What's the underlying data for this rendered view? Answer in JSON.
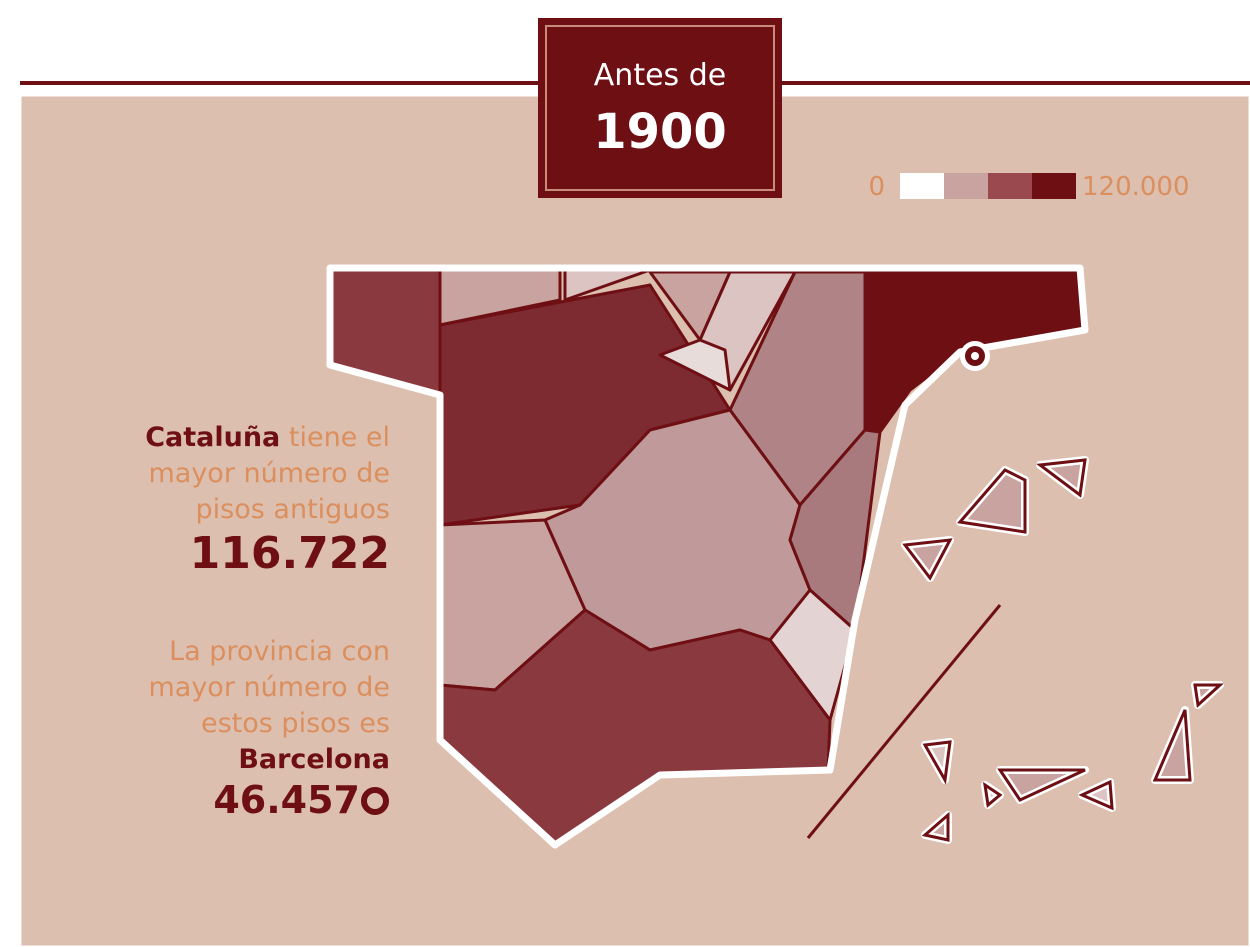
{
  "header": {
    "line1": "Antes de",
    "line2": "1900"
  },
  "legend": {
    "min": "0",
    "max": "120.000"
  },
  "highlight": {
    "region": "Cataluña",
    "lines": [
      "tiene el",
      "mayor número de",
      "pisos antiguos"
    ],
    "value": "116.722"
  },
  "province": {
    "lines": [
      "La provincia con",
      "mayor número de",
      "estos pisos es"
    ],
    "name": "Barcelona",
    "value": "46.457"
  }
}
